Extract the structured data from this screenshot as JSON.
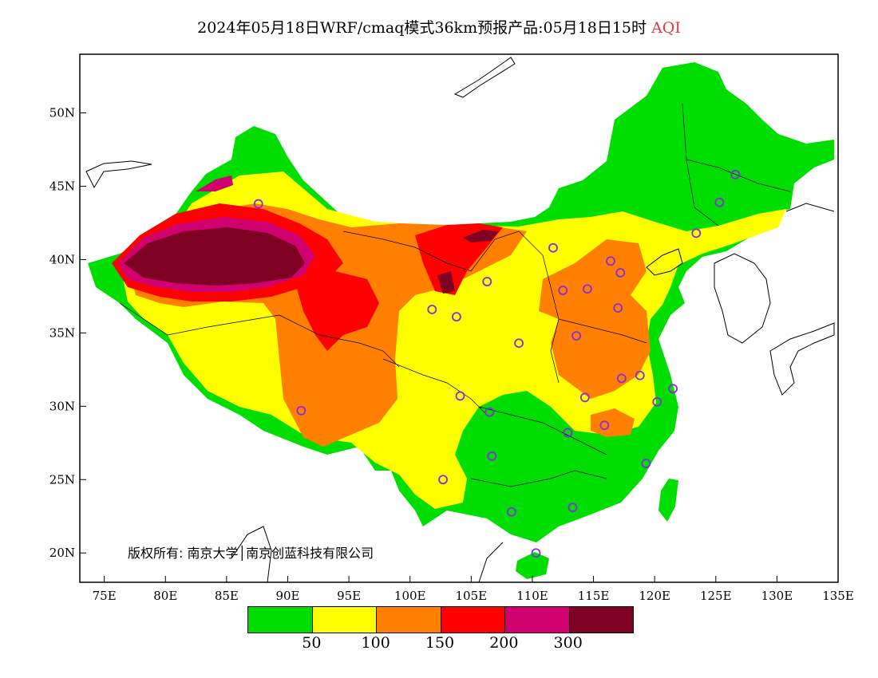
{
  "title": {
    "main": "2024年05月18日WRF/cmaq模式36km预报产品:05月18日15时",
    "variable": "AQI"
  },
  "copyright": "版权所有: 南京大学│南京创蓝科技有限公司",
  "axes": {
    "lat_ticks": [
      "50N",
      "45N",
      "40N",
      "35N",
      "30N",
      "25N",
      "20N"
    ],
    "lon_ticks": [
      "75E",
      "80E",
      "85E",
      "90E",
      "95E",
      "100E",
      "105E",
      "110E",
      "115E",
      "120E",
      "125E",
      "130E",
      "135E"
    ],
    "lon_range": [
      73,
      135
    ],
    "lat_range": [
      18,
      54
    ]
  },
  "legend": {
    "colors": [
      "#00dd00",
      "#ffff00",
      "#ff8000",
      "#ff0000",
      "#d0006e",
      "#7e0023"
    ],
    "labels": [
      "50",
      "100",
      "150",
      "200",
      "300"
    ]
  },
  "stations": [
    {
      "lon": 126.6,
      "lat": 45.8
    },
    {
      "lon": 125.3,
      "lat": 43.9
    },
    {
      "lon": 123.4,
      "lat": 41.8
    },
    {
      "lon": 87.6,
      "lat": 43.8
    },
    {
      "lon": 111.7,
      "lat": 40.8
    },
    {
      "lon": 116.4,
      "lat": 39.9
    },
    {
      "lon": 117.2,
      "lat": 39.1
    },
    {
      "lon": 106.3,
      "lat": 38.5
    },
    {
      "lon": 112.5,
      "lat": 37.9
    },
    {
      "lon": 114.5,
      "lat": 38.0
    },
    {
      "lon": 103.8,
      "lat": 36.1
    },
    {
      "lon": 101.8,
      "lat": 36.6
    },
    {
      "lon": 117.0,
      "lat": 36.7
    },
    {
      "lon": 108.9,
      "lat": 34.3
    },
    {
      "lon": 113.6,
      "lat": 34.8
    },
    {
      "lon": 117.3,
      "lat": 31.9
    },
    {
      "lon": 118.8,
      "lat": 32.1
    },
    {
      "lon": 121.5,
      "lat": 31.2
    },
    {
      "lon": 120.2,
      "lat": 30.3
    },
    {
      "lon": 114.3,
      "lat": 30.6
    },
    {
      "lon": 104.1,
      "lat": 30.7
    },
    {
      "lon": 106.5,
      "lat": 29.6
    },
    {
      "lon": 91.1,
      "lat": 29.7
    },
    {
      "lon": 112.9,
      "lat": 28.2
    },
    {
      "lon": 115.9,
      "lat": 28.7
    },
    {
      "lon": 106.7,
      "lat": 26.6
    },
    {
      "lon": 119.3,
      "lat": 26.1
    },
    {
      "lon": 102.7,
      "lat": 25.0
    },
    {
      "lon": 113.3,
      "lat": 23.1
    },
    {
      "lon": 108.3,
      "lat": 22.8
    },
    {
      "lon": 110.3,
      "lat": 20.0
    }
  ]
}
